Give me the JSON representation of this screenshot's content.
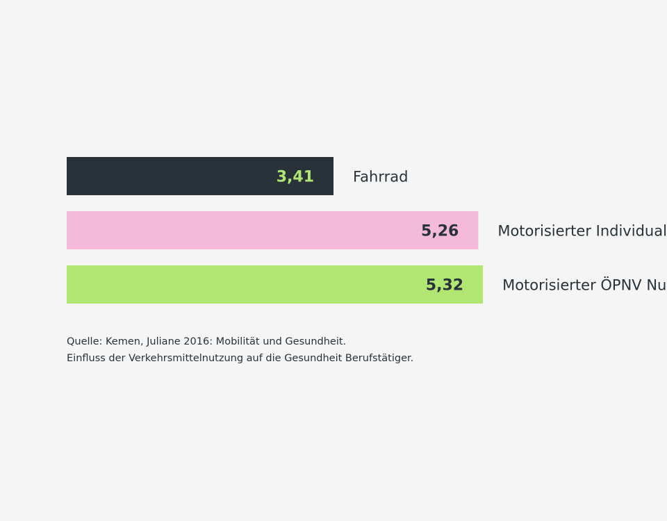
{
  "chart_data": {
    "type": "bar",
    "orientation": "horizontal",
    "categories": [
      "Fahrrad",
      "Motorisierter Individualverkehr",
      "Motorisierter ÖPNV Nutzer"
    ],
    "values": [
      3.41,
      5.26,
      5.32
    ],
    "value_labels": [
      "3,41",
      "5,26",
      "5,32"
    ],
    "bar_colors": [
      "#283238",
      "#f5bad9",
      "#b1e672"
    ],
    "value_label_colors": [
      "#b1e672",
      "#283238",
      "#283238"
    ],
    "title": "",
    "xlabel": "",
    "ylabel": "",
    "grid": false,
    "legend": "none"
  },
  "source": {
    "line1": "Quelle: Kemen, Juliane 2016: Mobilität und Gesundheit.",
    "line2": "Einfluss der Verkehrsmittelnutzung auf die Gesundheit Berufstätiger."
  }
}
